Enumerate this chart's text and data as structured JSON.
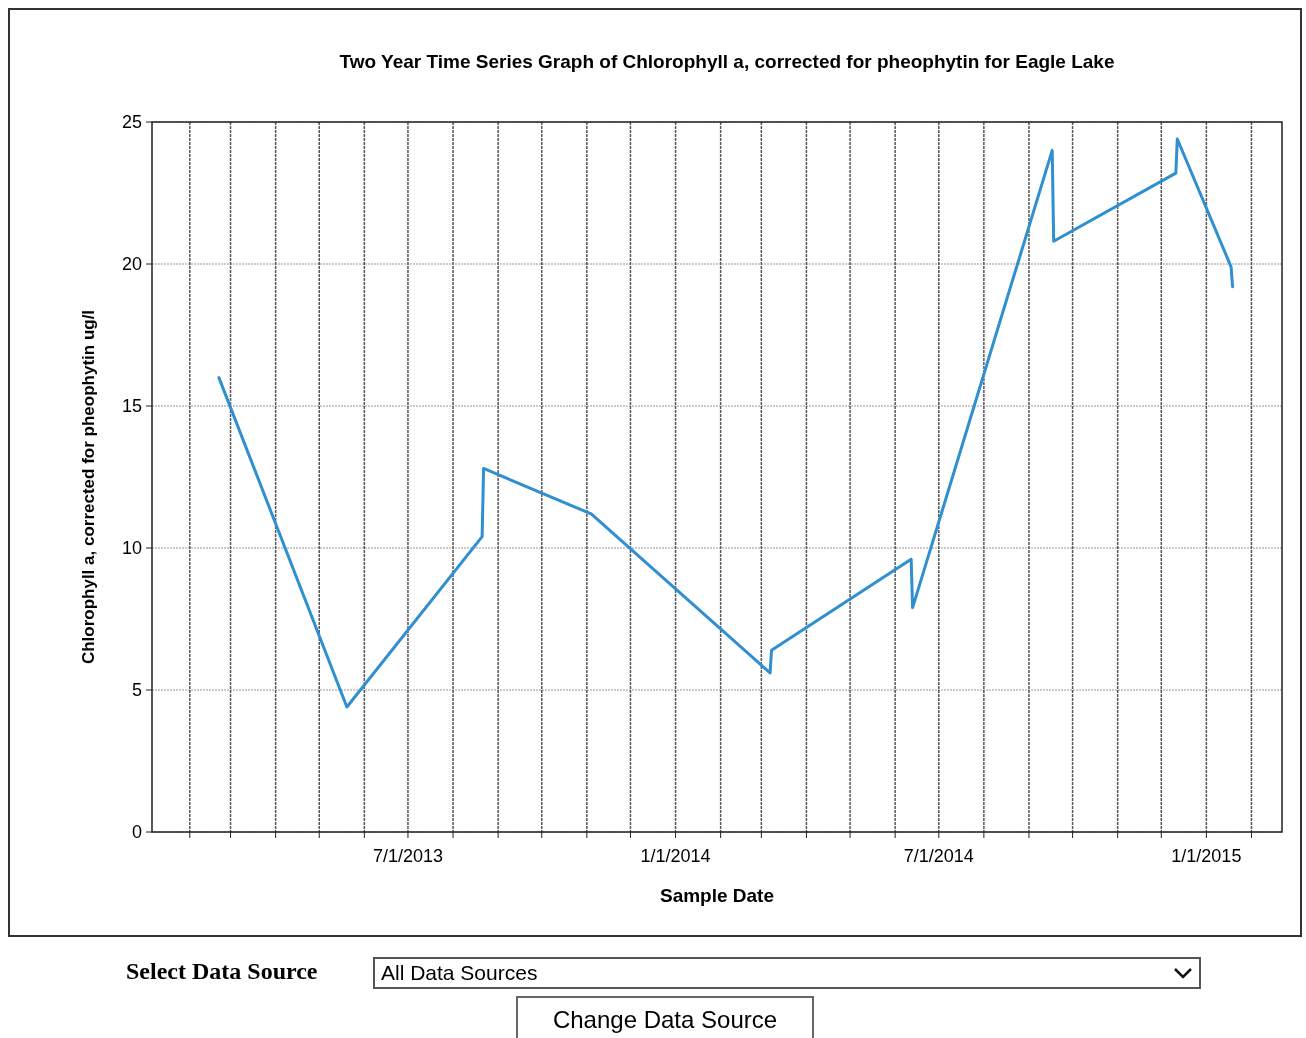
{
  "chart_data": {
    "type": "line",
    "title": "Two Year Time Series Graph of Chlorophyll a, corrected for pheophytin for Eagle Lake",
    "xlabel": "Sample Date",
    "ylabel": "Chlorophyll a, corrected for pheophytin ug/l",
    "x": [
      "2013-02-21",
      "2013-05-20",
      "2013-08-21",
      "2013-08-22",
      "2013-11-04",
      "2014-03-07",
      "2014-03-08",
      "2014-06-12",
      "2014-06-13",
      "2014-09-17",
      "2014-09-18",
      "2014-12-11",
      "2014-12-12",
      "2015-01-18",
      "2015-01-19"
    ],
    "series": [
      {
        "color": "#2f8fd0",
        "values": [
          16.0,
          4.4,
          10.4,
          12.8,
          11.2,
          5.6,
          6.4,
          9.6,
          7.9,
          24.0,
          20.8,
          23.2,
          24.4,
          19.9,
          19.2
        ]
      }
    ],
    "xlim": [
      "2013-01-06",
      "2015-02-22"
    ],
    "xticks": [
      {
        "value": "2013-02-01",
        "label": null
      },
      {
        "value": "2013-03-01",
        "label": null
      },
      {
        "value": "2013-04-01",
        "label": null
      },
      {
        "value": "2013-05-01",
        "label": null
      },
      {
        "value": "2013-06-01",
        "label": null
      },
      {
        "value": "2013-07-01",
        "label": "7/1/2013"
      },
      {
        "value": "2013-08-01",
        "label": null
      },
      {
        "value": "2013-09-01",
        "label": null
      },
      {
        "value": "2013-10-01",
        "label": null
      },
      {
        "value": "2013-11-01",
        "label": null
      },
      {
        "value": "2013-12-01",
        "label": null
      },
      {
        "value": "2014-01-01",
        "label": "1/1/2014"
      },
      {
        "value": "2014-02-01",
        "label": null
      },
      {
        "value": "2014-03-01",
        "label": null
      },
      {
        "value": "2014-04-01",
        "label": null
      },
      {
        "value": "2014-05-01",
        "label": null
      },
      {
        "value": "2014-06-01",
        "label": null
      },
      {
        "value": "2014-07-01",
        "label": "7/1/2014"
      },
      {
        "value": "2014-08-01",
        "label": null
      },
      {
        "value": "2014-09-01",
        "label": null
      },
      {
        "value": "2014-10-01",
        "label": null
      },
      {
        "value": "2014-11-01",
        "label": null
      },
      {
        "value": "2014-12-01",
        "label": null
      },
      {
        "value": "2015-01-01",
        "label": "1/1/2015"
      },
      {
        "value": "2015-02-01",
        "label": null
      }
    ],
    "ylim": [
      0,
      25
    ],
    "yticks": [
      0,
      5,
      10,
      15,
      20,
      25
    ],
    "grid": true,
    "line_style": "solid",
    "annotations": [
      "Select Data Source",
      "All Data Sources",
      "Change Data Source"
    ]
  }
}
